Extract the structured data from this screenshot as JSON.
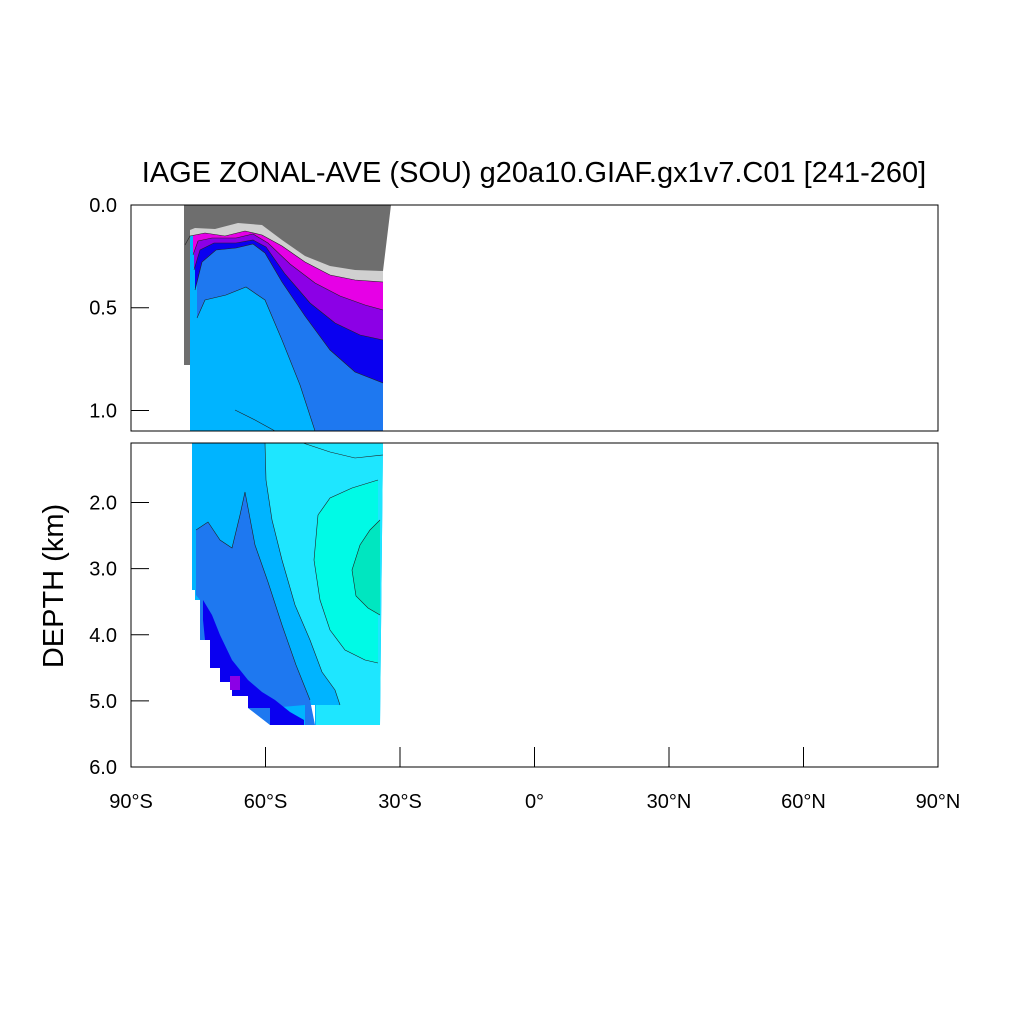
{
  "chart_data": {
    "type": "contour",
    "title": "IAGE ZONAL-AVE (SOU) g20a10.GIAF.gx1v7.C01 [241-260]",
    "xlabel": "",
    "ylabel": "DEPTH (km)",
    "xlim": [
      -90,
      90
    ],
    "x_ticks": [
      -90,
      -60,
      -30,
      0,
      30,
      60,
      90
    ],
    "x_tick_labels": [
      "90°S",
      "60°S",
      "30°S",
      "0°",
      "30°N",
      "60°N",
      "90°N"
    ],
    "upper_panel": {
      "ylim": [
        0,
        1.1
      ],
      "y_ticks": [
        0.0,
        0.5,
        1.0
      ],
      "y_tick_labels": [
        "0.0",
        "0.5",
        "1.0"
      ]
    },
    "lower_panel": {
      "ylim": [
        1.1,
        6.0
      ],
      "y_ticks": [
        2.0,
        3.0,
        4.0,
        5.0,
        6.0
      ],
      "y_tick_labels": [
        "2.0",
        "3.0",
        "4.0",
        "5.0",
        "6.0"
      ]
    },
    "data_extent": {
      "lat_min": -78,
      "lat_max": -34
    },
    "layers": [
      {
        "color": "#6e6e6e",
        "upper": [
          [
            -78,
            0
          ],
          [
            -34,
            0
          ],
          [
            -34,
            0.33
          ],
          [
            -40,
            0.32
          ],
          [
            -46,
            0.3
          ],
          [
            -52,
            0.27
          ],
          [
            -58,
            0.2
          ],
          [
            -62,
            0.14
          ],
          [
            -66,
            0.13
          ],
          [
            -70,
            0.13
          ],
          [
            -74,
            0.14
          ],
          [
            -78,
            0.14
          ]
        ]
      },
      {
        "color": "#d0d0d0",
        "upper": [
          [
            -78,
            0.17
          ],
          [
            -76,
            0.16
          ],
          [
            -72,
            0.17
          ],
          [
            -66,
            0.15
          ],
          [
            -62,
            0.17
          ],
          [
            -58,
            0.21
          ],
          [
            -52,
            0.28
          ],
          [
            -46,
            0.35
          ],
          [
            -40,
            0.42
          ],
          [
            -36,
            0.5
          ],
          [
            -34,
            0.52
          ]
        ]
      },
      {
        "color": "#e600e6",
        "upper": [
          [
            -77,
            0.25
          ],
          [
            -75,
            0.2
          ],
          [
            -72,
            0.18
          ],
          [
            -66,
            0.17
          ],
          [
            -62,
            0.19
          ],
          [
            -58,
            0.25
          ],
          [
            -52,
            0.35
          ],
          [
            -46,
            0.45
          ],
          [
            -40,
            0.55
          ],
          [
            -36,
            0.62
          ],
          [
            -34,
            0.64
          ]
        ]
      },
      {
        "color": "#8c00e6",
        "upper": [
          [
            -77,
            0.3
          ],
          [
            -75,
            0.22
          ],
          [
            -72,
            0.2
          ],
          [
            -66,
            0.19
          ],
          [
            -62,
            0.22
          ],
          [
            -58,
            0.3
          ],
          [
            -52,
            0.42
          ],
          [
            -46,
            0.53
          ],
          [
            -40,
            0.65
          ],
          [
            -36,
            0.73
          ],
          [
            -34,
            0.76
          ]
        ]
      },
      {
        "color": "#0a00f0",
        "upper": [
          [
            -76,
            0.35
          ],
          [
            -74,
            0.24
          ],
          [
            -71,
            0.22
          ],
          [
            -66,
            0.21
          ],
          [
            -62,
            0.26
          ],
          [
            -58,
            0.36
          ],
          [
            -52,
            0.52
          ],
          [
            -46,
            0.68
          ],
          [
            -40,
            0.83
          ],
          [
            -36,
            0.9
          ],
          [
            -34,
            0.93
          ]
        ]
      },
      {
        "color": "#1e78f0",
        "upper": [
          [
            -76,
            0.45
          ],
          [
            -74,
            0.34
          ],
          [
            -71,
            0.32
          ],
          [
            -66,
            0.38
          ],
          [
            -62,
            0.5
          ],
          [
            -58,
            0.68
          ],
          [
            -52,
            0.88
          ],
          [
            -46,
            1.05
          ],
          [
            -40,
            1.1
          ]
        ]
      },
      {
        "color": "#00b4ff",
        "upper": [
          [
            -76,
            0.55
          ],
          [
            -74,
            0.46
          ],
          [
            -70,
            0.42
          ],
          [
            -66,
            0.5
          ],
          [
            -62,
            0.65
          ],
          [
            -58,
            0.85
          ],
          [
            -54,
            1.02
          ]
        ]
      },
      {
        "color": "#1ee6ff",
        "lower": [
          [
            -60,
            1.2
          ],
          [
            -52,
            1.3
          ],
          [
            -44,
            1.35
          ],
          [
            -38,
            1.25
          ],
          [
            -34,
            1.2
          ]
        ]
      },
      {
        "color": "#00fae6",
        "lower": [
          [
            -40,
            2.0
          ],
          [
            -34,
            1.9
          ]
        ]
      }
    ]
  }
}
